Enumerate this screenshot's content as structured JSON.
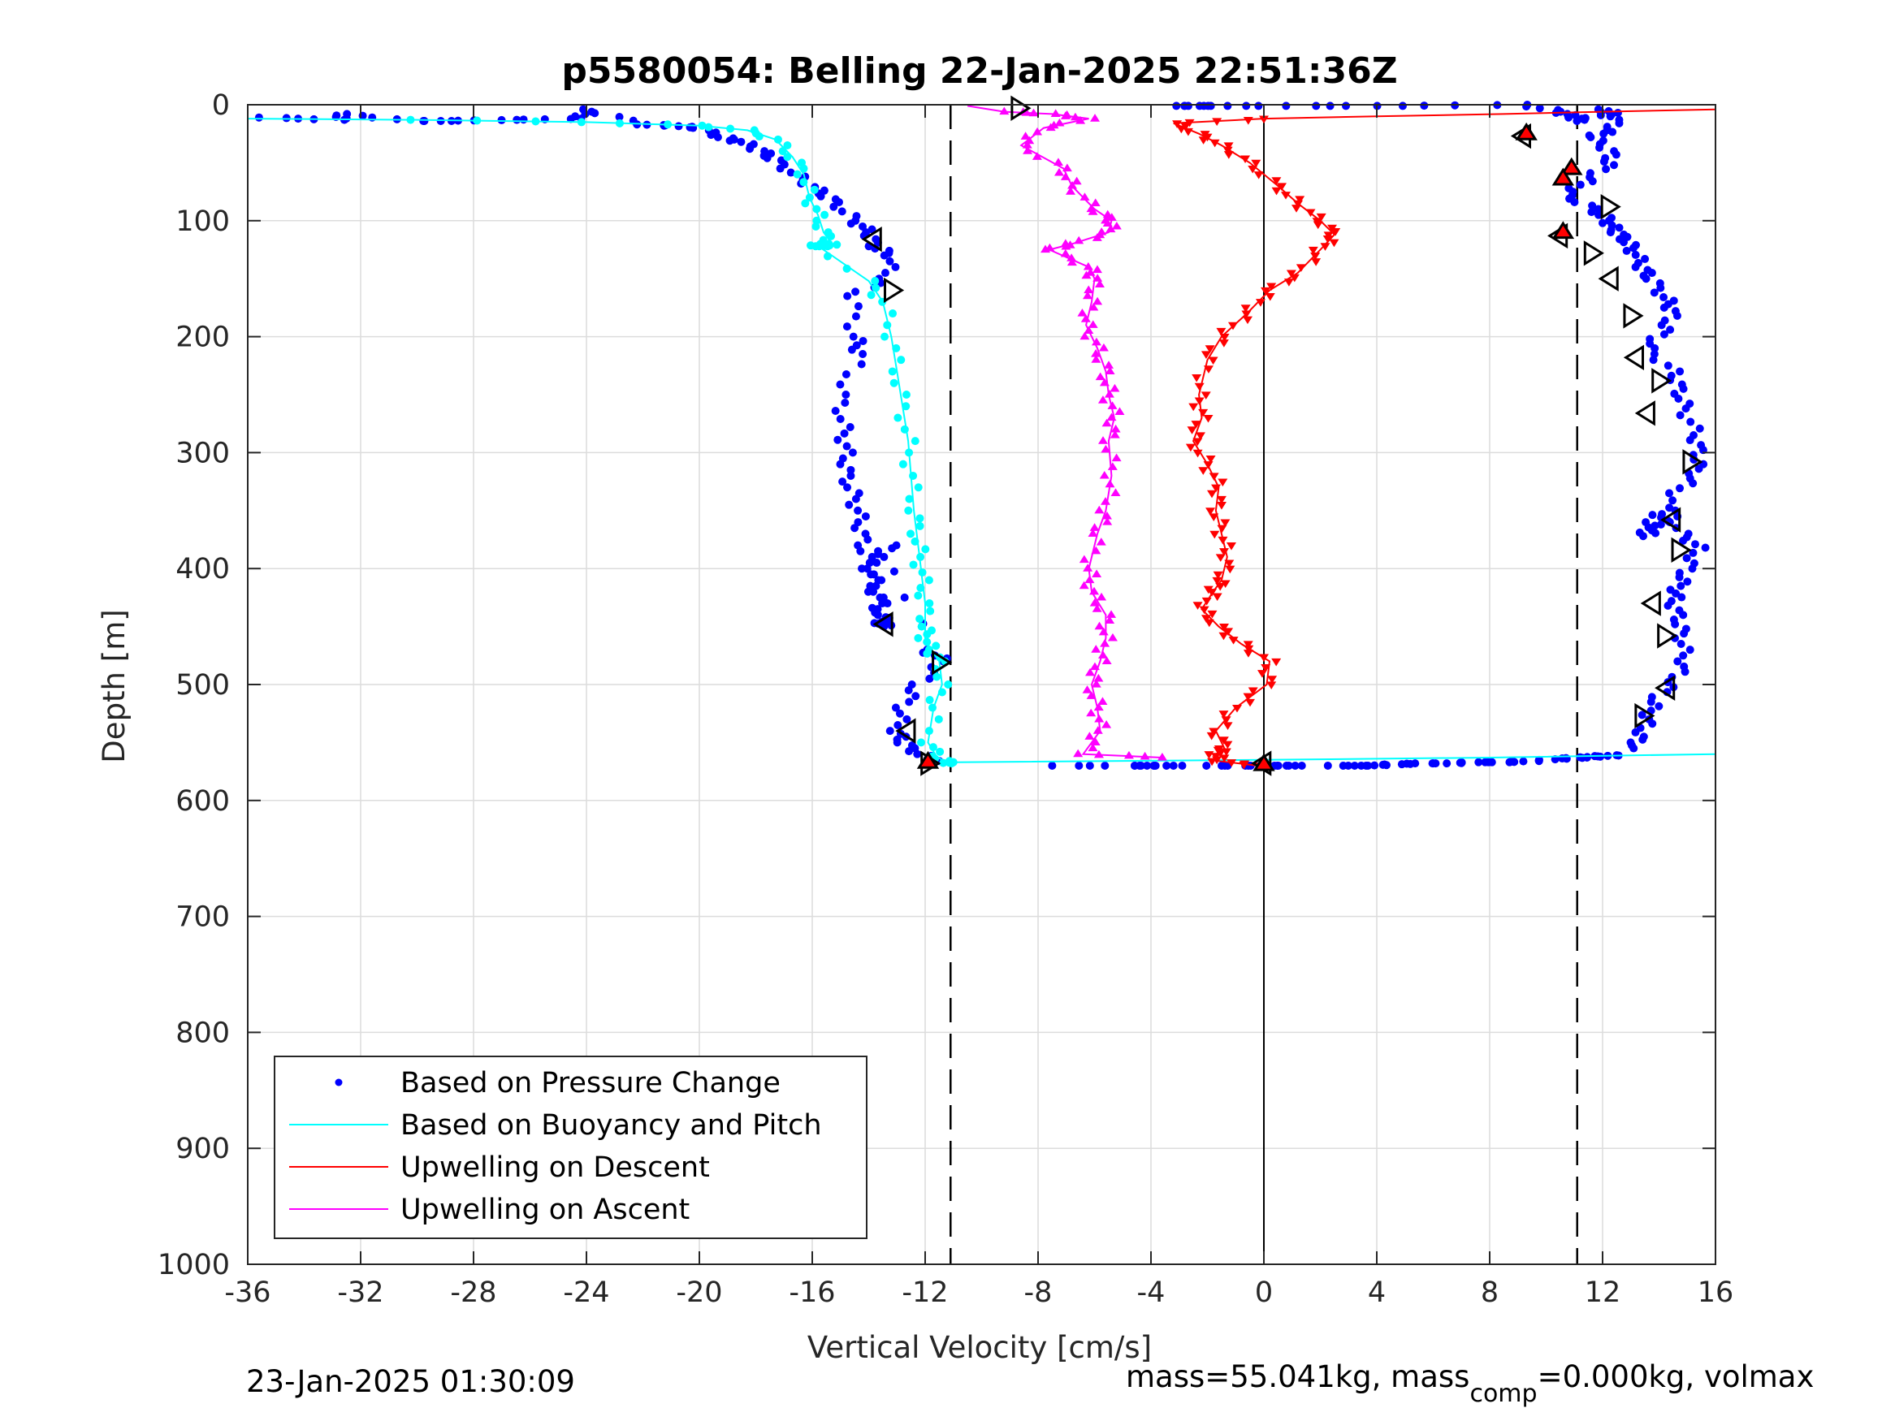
{
  "chart_data": {
    "type": "scatter",
    "title": "p5580054: Belling 22-Jan-2025 22:51:36Z",
    "xlabel": "Vertical Velocity [cm/s]",
    "ylabel": "Depth [m]",
    "xlim": [
      -36,
      16
    ],
    "ylim": [
      0,
      1000
    ],
    "y_reversed": true,
    "grid": true,
    "legend_position": "bottom-left",
    "xticks": [
      "-36",
      "-32",
      "-28",
      "-24",
      "-20",
      "-16",
      "-12",
      "-8",
      "-4",
      "0",
      "4",
      "8",
      "12",
      "16"
    ],
    "yticks": [
      "0",
      "100",
      "200",
      "300",
      "400",
      "500",
      "600",
      "700",
      "800",
      "900",
      "1000"
    ],
    "reference_lines": {
      "dashed_x": [
        -11.1,
        11.1
      ],
      "solid_x": [
        0
      ]
    },
    "series": [
      {
        "name": "Based on Pressure Change",
        "style": "points",
        "color": "#0000ff",
        "x": [
          -35.6,
          -32.7,
          -32.7,
          -30,
          -29,
          -26.6,
          -24.2,
          -24,
          -22,
          -21,
          -20,
          -19.2,
          -18.5,
          -17.8,
          -17.3,
          -16.5,
          -15.8,
          -15.2,
          -14.5,
          -14,
          -13.8,
          -13.2,
          -13.4,
          -14.6,
          -14.5,
          -14.3,
          -15,
          -14.9,
          -14.8,
          -14.8,
          -14.5,
          -14.3,
          -14.2,
          -14,
          -13.6,
          -13.5,
          -13.4,
          -13.6,
          -13.7,
          -13.9,
          -13.7,
          -13.2,
          -12,
          -11.3,
          -12.3,
          -12.8,
          -13,
          -12.8,
          -12.2,
          -11.5
        ],
        "y": [
          11,
          13,
          8,
          14,
          14,
          13,
          12,
          4,
          17,
          18,
          20,
          28,
          32,
          40,
          48,
          62,
          74,
          84,
          100,
          110,
          122,
          130,
          150,
          165,
          200,
          215,
          250,
          278,
          300,
          320,
          340,
          360,
          380,
          400,
          420,
          440,
          450,
          446,
          430,
          410,
          390,
          380,
          470,
          480,
          500,
          520,
          540,
          550,
          560,
          566
        ],
        "x2": [
          -7.5,
          -4.7,
          -4.1,
          -3.7,
          -1.6,
          -0.6,
          0.5,
          1,
          3.2,
          3.7,
          4.5,
          5.5,
          6.5,
          7.5,
          8.5,
          9.5,
          10.5,
          11.3,
          11.8,
          12.5
        ],
        "y2": [
          570,
          570,
          570,
          570,
          570,
          570,
          570,
          570,
          570,
          570,
          569,
          568,
          568,
          567,
          567,
          566,
          564,
          563,
          562,
          561
        ],
        "x3": [
          -3.1,
          -2.4,
          -1.5,
          1.6,
          4.7,
          9.2,
          10.5,
          10.9,
          11.3,
          12.1,
          12.5,
          12.3,
          11.6,
          12.3,
          12.2,
          11.4,
          10.7,
          11.7,
          12.2,
          12.4,
          12.8,
          13.1,
          13.4,
          13.7,
          14.2,
          14.5,
          14.2,
          13.6,
          14.5,
          14.7,
          14.9,
          15.3,
          15.4,
          15.3,
          14.6,
          13.7,
          13.5,
          14,
          14.4,
          14.8,
          15.4,
          15,
          14.7,
          14.5,
          14.7,
          14.8,
          14.9,
          14.5,
          13.8,
          13.6,
          13.3,
          13.1
        ],
        "y3": [
          1,
          1,
          1,
          1,
          1,
          0,
          6,
          10,
          14,
          4,
          10,
          22,
          28,
          40,
          52,
          66,
          78,
          90,
          100,
          108,
          116,
          126,
          140,
          150,
          166,
          178,
          194,
          210,
          230,
          245,
          262,
          285,
          302,
          318,
          335,
          360,
          372,
          362,
          350,
          370,
          382,
          400,
          415,
          428,
          444,
          460,
          480,
          498,
          515,
          530,
          545,
          555
        ]
      },
      {
        "name": "Based on Buoyancy and Pitch",
        "style": "line",
        "color": "#00ffff",
        "x": [
          -36,
          -30,
          -24,
          -20,
          -18.3,
          -17.3,
          -16.7,
          -16.3,
          -16.1,
          -15.8,
          -15.6,
          -15.3,
          -15.5,
          -15.8,
          -15.9,
          -14,
          -13.5,
          -13.2,
          -13,
          -12.8,
          -12.6,
          -12.5,
          -12.4,
          -12.3,
          -12.2,
          -12.1,
          -12,
          -12,
          -12,
          -11.8,
          -11.5,
          -11.4,
          -11.7,
          -11.9,
          -11.6,
          -11.2,
          -11
        ],
        "y": [
          12,
          13,
          15,
          18,
          22,
          30,
          45,
          60,
          80,
          95,
          110,
          120,
          122,
          122,
          120,
          152,
          170,
          200,
          230,
          260,
          290,
          320,
          350,
          370,
          390,
          410,
          430,
          450,
          460,
          470,
          480,
          500,
          520,
          550,
          562,
          568,
          567
        ],
        "x2": [
          -11,
          0,
          8,
          16
        ],
        "y2": [
          567,
          565,
          563,
          560
        ]
      },
      {
        "name": "Upwelling on Descent",
        "style": "markers",
        "color": "#ff0000",
        "x": [
          16,
          12,
          8.5,
          4,
          0,
          -3.2,
          -2.3,
          -1.5,
          -0.5,
          0.5,
          1.2,
          2,
          2.5,
          2,
          1.2,
          0.2,
          -0.6,
          -1.5,
          -2,
          -2.3,
          -2.2,
          -2.5,
          -2,
          -1.6,
          -1.7,
          -1.5,
          -1.3,
          -1.5,
          -1.8,
          -2.2,
          -1.6,
          -0.8,
          0.2,
          0.1,
          -1,
          -1.7,
          -1.4,
          -1.7,
          -1.6,
          -0.2
        ],
        "y": [
          4,
          6,
          8,
          10,
          12,
          16,
          25,
          35,
          50,
          70,
          85,
          100,
          112,
          125,
          145,
          160,
          180,
          200,
          220,
          250,
          270,
          290,
          310,
          330,
          350,
          370,
          390,
          410,
          420,
          435,
          450,
          465,
          480,
          500,
          520,
          540,
          555,
          560,
          566,
          570
        ]
      },
      {
        "name": "Upwelling on Ascent",
        "style": "markers",
        "color": "#ff00ff",
        "x": [
          -10.5,
          -9.2,
          -7.5,
          -6.2,
          -7.8,
          -8.6,
          -7.1,
          -6.8,
          -6,
          -5.4,
          -5.5,
          -6.8,
          -7.6,
          -6.2,
          -6,
          -6.1,
          -6.3,
          -5.9,
          -5.6,
          -5.5,
          -5.3,
          -5.5,
          -5.4,
          -5.6,
          -5.9,
          -6.2,
          -6.1,
          -5.6,
          -5.6,
          -5.8,
          -6.1,
          -5.9,
          -5.8,
          -6.4,
          -3.6
        ],
        "y": [
          1,
          6,
          8,
          12,
          20,
          35,
          55,
          70,
          90,
          100,
          110,
          120,
          125,
          140,
          150,
          170,
          190,
          210,
          230,
          250,
          270,
          290,
          320,
          350,
          370,
          400,
          420,
          440,
          460,
          480,
          500,
          520,
          540,
          560,
          563
        ]
      }
    ],
    "triangle_markers": {
      "hollow": [
        {
          "x": -8.7,
          "y": 3
        },
        {
          "x": -13.8,
          "y": 116
        },
        {
          "x": -13.2,
          "y": 160
        },
        {
          "x": -13.4,
          "y": 448
        },
        {
          "x": -11.5,
          "y": 481
        },
        {
          "x": -12.6,
          "y": 540
        },
        {
          "x": -11.9,
          "y": 568
        },
        {
          "x": 9.2,
          "y": 27
        },
        {
          "x": 12.2,
          "y": 88
        },
        {
          "x": 10.5,
          "y": 113
        },
        {
          "x": 11.6,
          "y": 128
        },
        {
          "x": 12.3,
          "y": 150
        },
        {
          "x": 13,
          "y": 182
        },
        {
          "x": 13.2,
          "y": 218
        },
        {
          "x": 14,
          "y": 238
        },
        {
          "x": 13.6,
          "y": 266
        },
        {
          "x": 15.1,
          "y": 308
        },
        {
          "x": 14.5,
          "y": 358
        },
        {
          "x": 14.7,
          "y": 384
        },
        {
          "x": 13.8,
          "y": 430
        },
        {
          "x": 14.2,
          "y": 458
        },
        {
          "x": 14.3,
          "y": 503
        },
        {
          "x": 13.4,
          "y": 527
        },
        {
          "x": 0,
          "y": 568
        }
      ],
      "filled": [
        {
          "x": 9.3,
          "y": 25
        },
        {
          "x": 10.9,
          "y": 55
        },
        {
          "x": 10.6,
          "y": 64
        },
        {
          "x": 10.6,
          "y": 110
        },
        {
          "x": -11.9,
          "y": 567
        },
        {
          "x": 0,
          "y": 569
        }
      ]
    },
    "legend": [
      {
        "label": "Based on Pressure Change",
        "symbol": "dot",
        "color": "#0000ff"
      },
      {
        "label": "Based on Buoyancy and Pitch",
        "symbol": "line",
        "color": "#00ffff"
      },
      {
        "label": "Upwelling on Descent",
        "symbol": "line",
        "color": "#ff0000"
      },
      {
        "label": "Upwelling on Ascent",
        "symbol": "line",
        "color": "#ff00ff"
      }
    ]
  },
  "footer": {
    "timestamp": "23-Jan-2025 01:30:09",
    "mass_text_prefix": "mass=55.041kg, mass",
    "mass_subscript": "comp",
    "mass_text_suffix": "=0.000kg, volmax"
  }
}
